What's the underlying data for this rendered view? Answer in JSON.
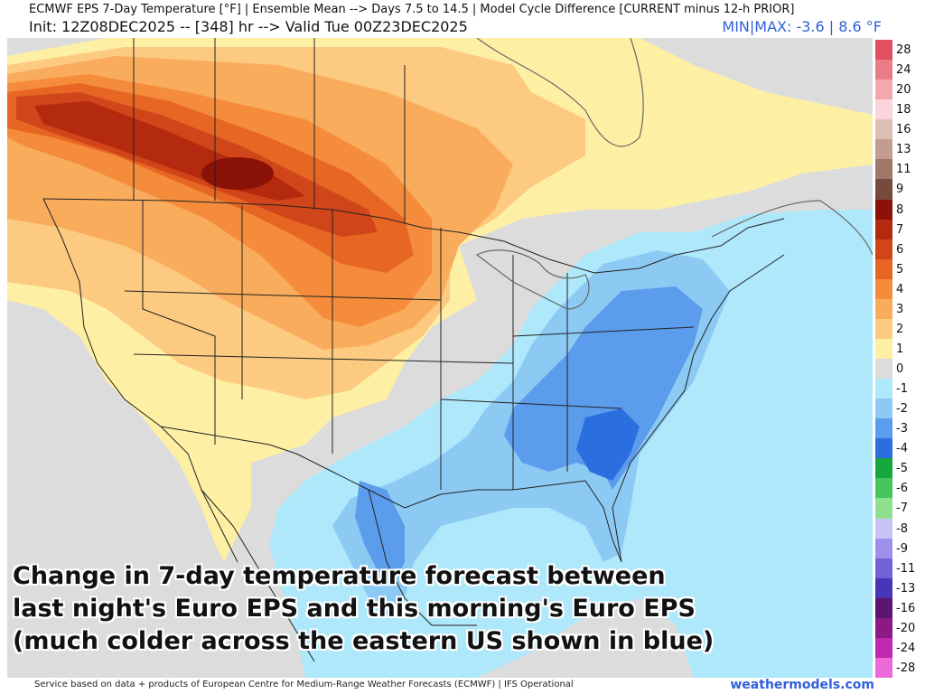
{
  "header": {
    "title": "ECMWF EPS 7-Day Temperature [°F] | Ensemble Mean --> Days 7.5 to 14.5 | Model Cycle Difference [CURRENT minus 12-h PRIOR]",
    "init": "Init: 12Z08DEC2025 -- [348] hr --> Valid Tue 00Z23DEC2025",
    "minmax": "MIN|MAX: -3.6 | 8.6 °F"
  },
  "caption": {
    "line1": "Change in 7-day temperature forecast between",
    "line2": "last night's Euro EPS and this morning's Euro EPS",
    "line3": "(much colder across the eastern US shown in blue)"
  },
  "legend": {
    "items": [
      {
        "label": "28",
        "color": "#e05060"
      },
      {
        "label": "24",
        "color": "#ea7c88"
      },
      {
        "label": "20",
        "color": "#f3a8b0"
      },
      {
        "label": "18",
        "color": "#fad4d8"
      },
      {
        "label": "16",
        "color": "#dcc0b6"
      },
      {
        "label": "13",
        "color": "#c29c90"
      },
      {
        "label": "11",
        "color": "#a0786a"
      },
      {
        "label": "9",
        "color": "#784a3e"
      },
      {
        "label": "8",
        "color": "#8a1206"
      },
      {
        "label": "7",
        "color": "#b42a0e"
      },
      {
        "label": "6",
        "color": "#d0461a"
      },
      {
        "label": "5",
        "color": "#e86624"
      },
      {
        "label": "4",
        "color": "#f48c3c"
      },
      {
        "label": "3",
        "color": "#f9ac5c"
      },
      {
        "label": "2",
        "color": "#fcca80"
      },
      {
        "label": "1",
        "color": "#fdf0a4"
      },
      {
        "label": "0",
        "color": "#dcdcdc"
      },
      {
        "label": "-1",
        "color": "#aee8fa"
      },
      {
        "label": "-2",
        "color": "#8ccaf4"
      },
      {
        "label": "-3",
        "color": "#5c9cec"
      },
      {
        "label": "-4",
        "color": "#2a6ee0"
      },
      {
        "label": "-5",
        "color": "#14a83e"
      },
      {
        "label": "-6",
        "color": "#48c45c"
      },
      {
        "label": "-7",
        "color": "#8ee08e"
      },
      {
        "label": "-8",
        "color": "#c6c4f6"
      },
      {
        "label": "-9",
        "color": "#9c90ec"
      },
      {
        "label": "-11",
        "color": "#7262d8"
      },
      {
        "label": "-13",
        "color": "#4836b8"
      },
      {
        "label": "-16",
        "color": "#5a1670"
      },
      {
        "label": "-20",
        "color": "#8c1a86"
      },
      {
        "label": "-24",
        "color": "#c02ab0"
      },
      {
        "label": "-28",
        "color": "#ec6ad8"
      }
    ]
  },
  "footer": {
    "credit": "Service based on data + products of European Centre for Medium-Range Weather Forecasts (ECMWF) | IFS Operational",
    "brand": "weathermodels.com"
  }
}
